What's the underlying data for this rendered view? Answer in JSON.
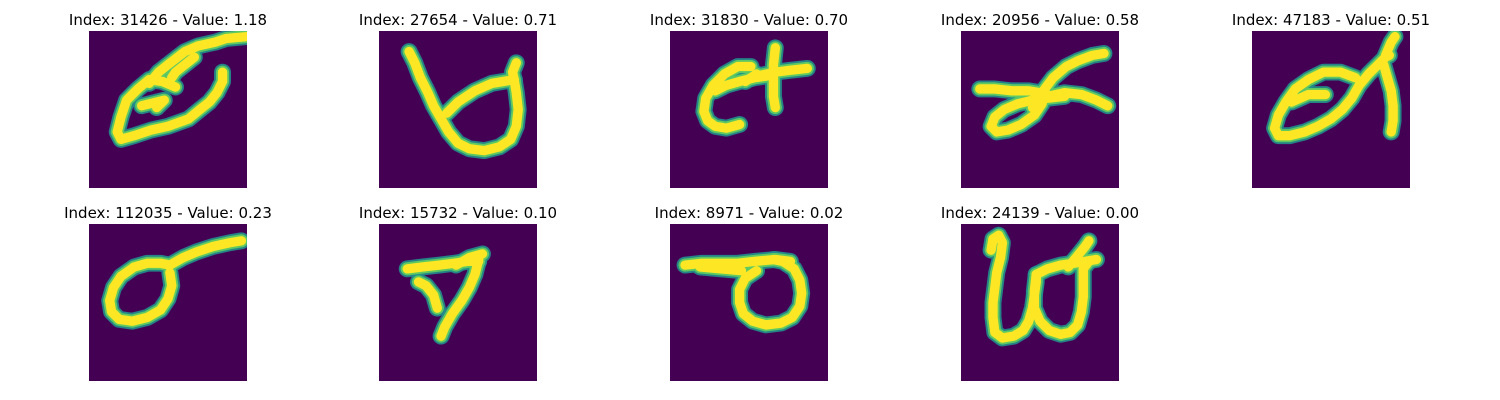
{
  "colors": {
    "background": "#440154",
    "teal": "#21918c",
    "green": "#5ec962",
    "yellow": "#fde725"
  },
  "panels": [
    {
      "title": "Index: 31426 - Value: 1.18",
      "strokes": [
        "M 32 28 L 37 22 L 42 18 L 51 11 L 58 8 L 67 6 L 73 4 L 84 3",
        "M 56 14 L 46 22 L 44 25",
        "M 46 30 L 39 27 L 32 26 L 26 31 L 20 37 L 17 46 L 15 54 L 17 58 L 24 56 L 33 53 L 42 51 L 53 47 L 59 42 L 64 38 L 68 33 L 71 27 L 71 22",
        "M 28 40 L 40 37 L 36 41"
      ]
    },
    {
      "title": "Index: 27654 - Value: 0.71",
      "strokes": [
        "M 16 11 L 19 17 L 22 25 L 26 33 L 29 40 L 33 47 L 37 54 L 42 60 L 48 63 L 56 64 L 64 62 L 70 58 L 73 51 L 74 42 L 73 33 L 72 27 L 71 22 L 73 17",
        "M 36 44 L 42 38 L 51 32 L 60 28 L 66 27 L 72 26"
      ]
    },
    {
      "title": "Index: 31830 - Value: 0.70",
      "strokes": [
        "M 43 19 L 36 19 L 29 23 L 23 29 L 19 36 L 18 43 L 20 48 L 24 51 L 30 52 L 37 50",
        "M 24 32 L 30 29 L 37 27 L 45 25 L 52 24",
        "M 56 9 L 55 18 L 55 27 L 55 35 L 56 41",
        "M 47 24 L 56 22 L 64 21 L 73 20",
        "M 40 27 L 46 23"
      ]
    },
    {
      "title": "Index: 20956 - Value: 0.58",
      "strokes": [
        "M 10 31 L 18 31 L 27 32 L 36 32 L 42 33",
        "M 45 33 L 43 39 L 39 45 L 32 50 L 25 53 L 19 54 L 16 51 L 18 46 L 23 42 L 30 39 L 38 37 L 46 36 L 55 35",
        "M 38 41 L 43 33 L 49 25 L 56 19 L 62 16 L 70 13 L 76 12",
        "M 46 35 L 55 33 L 64 34 L 72 37 L 78 40"
      ]
    },
    {
      "title": "Index: 47183 - Value: 0.51",
      "strokes": [
        "M 55 25 L 47 22 L 38 22 L 30 26 L 23 31 L 18 38 L 14 45 L 12 52 L 14 56 L 20 56 L 28 54 L 35 51 L 42 47 L 48 42 L 53 36 L 57 29 L 62 23 L 67 18 L 71 14 L 73 13",
        "M 71 13 L 74 6 L 76 3",
        "M 70 18 L 72 25 L 74 32 L 75 40 L 75 48 L 74 54",
        "M 21 38 L 30 34 L 39 34"
      ]
    },
    {
      "title": "Index: 112035 - Value: 0.23",
      "strokes": [
        "M 43 22 L 50 18 L 57 15 L 66 12 L 75 10 L 81 9",
        "M 43 22 L 38 21 L 31 21 L 24 23 L 17 28 L 13 34 L 11 41 L 12 47 L 16 51 L 23 52 L 31 50 L 38 46 L 42 40 L 44 33 L 43 26"
      ]
    },
    {
      "title": "Index: 15732 - Value: 0.10",
      "strokes": [
        "M 15 24 L 23 23 L 32 22 L 40 21 L 47 20 L 53 20",
        "M 53 19 L 51 27 L 48 34 L 44 41 L 39 48 L 35 55 L 33 60",
        "M 21 31 L 25 33 L 29 38 L 31 45",
        "M 41 22 L 48 18 L 55 16"
      ]
    },
    {
      "title": "Index: 8971 - Value: 0.02",
      "strokes": [
        "M 8 22 L 17 21 L 27 21 L 36 21 L 45 20 L 56 19 L 64 20",
        "M 46 25 L 40 29 L 37 35 L 37 42 L 39 48 L 44 52 L 51 54 L 59 53 L 65 50 L 69 44 L 70 37 L 69 30 L 66 24 L 60 20 L 55 19",
        "M 16 23 L 27 24 L 38 25"
      ]
    },
    {
      "title": "Index: 24139 - Value: 0.00",
      "strokes": [
        "M 16 14 L 17 8 L 20 6 L 22 10 L 21 18 L 19 26 L 18 34 L 17 42 L 17 50 L 18 58 L 22 61 L 28 60 L 33 57 L 36 52 L 38 45 L 39 38 L 40 31 L 40 27",
        "M 40 27 L 39 36 L 39 45 L 42 52 L 47 57 L 53 59 L 58 58 L 62 54 L 64 47 L 65 39 L 65 31 L 65 24 L 68 20",
        "M 40 27 L 46 24 L 53 22 L 60 21 L 66 20 L 72 19",
        "M 57 23 L 62 17 L 66 12 L 68 9"
      ]
    }
  ]
}
